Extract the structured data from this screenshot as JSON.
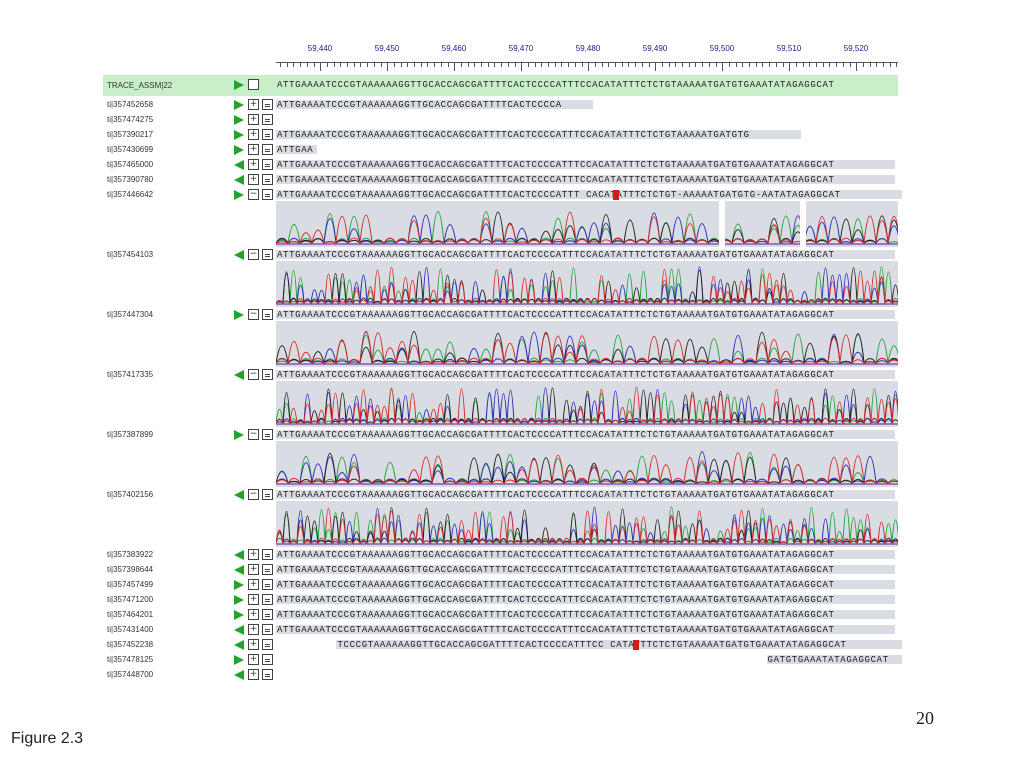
{
  "ruler": {
    "ticks": [
      "59,440",
      "59,450",
      "59,460",
      "59,470",
      "59,480",
      "59,490",
      "59,500",
      "59,510",
      "59,520"
    ]
  },
  "reference": {
    "label": "TRACE_ASSM|22",
    "sequence": "ATTGAAAATCCCGTAAAAAAGGTTGCACCAGCGATTTTCACTCCCCATTTCCACATATTTCTCTGTAAAAATGATGTGAAATATAGAGGCAT"
  },
  "reads": [
    {
      "id": "ti|357452658",
      "dir": "right",
      "expanded": false,
      "seq": "ATTGAAAATCCCGTAAAAAAGGTTGCACCAGCGATTTTCACTCCCCA",
      "offset": 0
    },
    {
      "id": "ti|357474275",
      "dir": "right",
      "expanded": false,
      "seq": "",
      "offset": 0
    },
    {
      "id": "ti|357390217",
      "dir": "right",
      "expanded": false,
      "seq": "ATTGAAAATCCCGTAAAAAAGGTTGCACCAGCGATTTTCACTCCCCATTTCCACATATTTCTCTGTAAAAATGATGTG",
      "offset": 0
    },
    {
      "id": "ti|357430699",
      "dir": "right",
      "expanded": false,
      "seq": "ATTGAA",
      "offset": 0
    },
    {
      "id": "ti|357465000",
      "dir": "left",
      "expanded": false,
      "seq": "ATTGAAAATCCCGTAAAAAAGGTTGCACCAGCGATTTTCACTCCCCATTTCCACATATTTCTCTGTAAAAATGATGTGAAATATAGAGGCAT",
      "offset": 0
    },
    {
      "id": "ti|357390780",
      "dir": "left",
      "expanded": false,
      "seq": "ATTGAAAATCCCGTAAAAAAGGTTGCACCAGCGATTTTCACTCCCCATTTCCACATATTTCTCTGTAAAAATGATGTGAAATATAGAGGCAT",
      "offset": 0
    },
    {
      "id": "ti|357446642",
      "dir": "right",
      "expanded": true,
      "seq": "ATTGAAAATCCCGTAAAAAAGGTTGCACCAGCGATTTTCACTCCCCATTT CACATATTTCTCTGT-AAAAATGATGTG-AATATAGAGGCAT",
      "offset": 0
    },
    {
      "id": "ti|357454103",
      "dir": "left",
      "expanded": true,
      "seq": "ATTGAAAATCCCGTAAAAAAGGTTGCACCAGCGATTTTCACTCCCCATTTCCACATATTTCTCTGTAAAAATGATGTGAAATATAGAGGCAT",
      "offset": 0
    },
    {
      "id": "ti|357447304",
      "dir": "right",
      "expanded": true,
      "seq": "ATTGAAAATCCCGTAAAAAAGGTTGCACCAGCGATTTTCACTCCCCATTTCCACATATTTCTCTGTAAAAATGATGTGAAATATAGAGGCAT",
      "offset": 0
    },
    {
      "id": "ti|357417335",
      "dir": "left",
      "expanded": true,
      "seq": "ATTGAAAATCCCGTAAAAAAGGTTGCACCAGCGATTTTCACTCCCCATTTCCACATATTTCTCTGTAAAAATGATGTGAAATATAGAGGCAT",
      "offset": 0
    },
    {
      "id": "ti|357387899",
      "dir": "right",
      "expanded": true,
      "seq": "ATTGAAAATCCCGTAAAAAAGGTTGCACCAGCGATTTTCACTCCCCATTTCCACATATTTCTCTGTAAAAATGATGTGAAATATAGAGGCAT",
      "offset": 0
    },
    {
      "id": "ti|357402156",
      "dir": "left",
      "expanded": true,
      "seq": "ATTGAAAATCCCGTAAAAAAGGTTGCACCAGCGATTTTCACTCCCCATTTCCACATATTTCTCTGTAAAAATGATGTGAAATATAGAGGCAT",
      "offset": 0
    },
    {
      "id": "ti|357383922",
      "dir": "left",
      "expanded": false,
      "seq": "ATTGAAAATCCCGTAAAAAAGGTTGCACCAGCGATTTTCACTCCCCATTTCCACATATTTCTCTGTAAAAATGATGTGAAATATAGAGGCAT",
      "offset": 0
    },
    {
      "id": "ti|357398644",
      "dir": "left",
      "expanded": false,
      "seq": "ATTGAAAATCCCGTAAAAAAGGTTGCACCAGCGATTTTCACTCCCCATTTCCACATATTTCTCTGTAAAAATGATGTGAAATATAGAGGCAT",
      "offset": 0
    },
    {
      "id": "ti|357457499",
      "dir": "right",
      "expanded": false,
      "seq": "ATTGAAAATCCCGTAAAAAAGGTTGCACCAGCGATTTTCACTCCCCATTTCCACATATTTCTCTGTAAAAATGATGTGAAATATAGAGGCAT",
      "offset": 0
    },
    {
      "id": "ti|357471200",
      "dir": "right",
      "expanded": false,
      "seq": "ATTGAAAATCCCGTAAAAAAGGTTGCACCAGCGATTTTCACTCCCCATTTCCACATATTTCTCTGTAAAAATGATGTGAAATATAGAGGCAT",
      "offset": 0
    },
    {
      "id": "ti|357464201",
      "dir": "right",
      "expanded": false,
      "seq": "ATTGAAAATCCCGTAAAAAAGGTTGCACCAGCGATTTTCACTCCCCATTTCCACATATTTCTCTGTAAAAATGATGTGAAATATAGAGGCAT",
      "offset": 0
    },
    {
      "id": "ti|357431400",
      "dir": "left",
      "expanded": false,
      "seq": "ATTGAAAATCCCGTAAAAAAGGTTGCACCAGCGATTTTCACTCCCCATTTCCACATATTTCTCTGTAAAAATGATGTGAAATATAGAGGCAT",
      "offset": 0
    },
    {
      "id": "ti|357452238",
      "dir": "left",
      "expanded": false,
      "seq": "TCCCGTAAAAAAGGTTGCACCAGCGATTTTCACTCCCCATTTCC CATATTTCTCTGTAAAAATGATGTGAAATATAGAGGCAT",
      "offset": 9
    },
    {
      "id": "ti|357478125",
      "dir": "right",
      "expanded": false,
      "seq": "GATGTGAAATATAGAGGCAT",
      "offset": 73
    },
    {
      "id": "ti|357448700",
      "dir": "left",
      "expanded": false,
      "seq": "",
      "offset": 0
    }
  ],
  "colors": {
    "reference_band": "#c9efc9",
    "read_band": "#d9dce2",
    "direction_arrow": "#22a32a",
    "mismatch": "#d21c1c",
    "trace_A": "#22a33a",
    "trace_C": "#2b2bb8",
    "trace_G": "#222222",
    "trace_T": "#d62a2a"
  },
  "icons": {
    "expand": "plus-box-icon",
    "collapse": "minus-box-icon",
    "document": "document-icon",
    "forward": "triangle-right-icon",
    "reverse": "triangle-left-icon"
  },
  "footer": {
    "page_number": "20",
    "caption": "Figure 2.3"
  }
}
